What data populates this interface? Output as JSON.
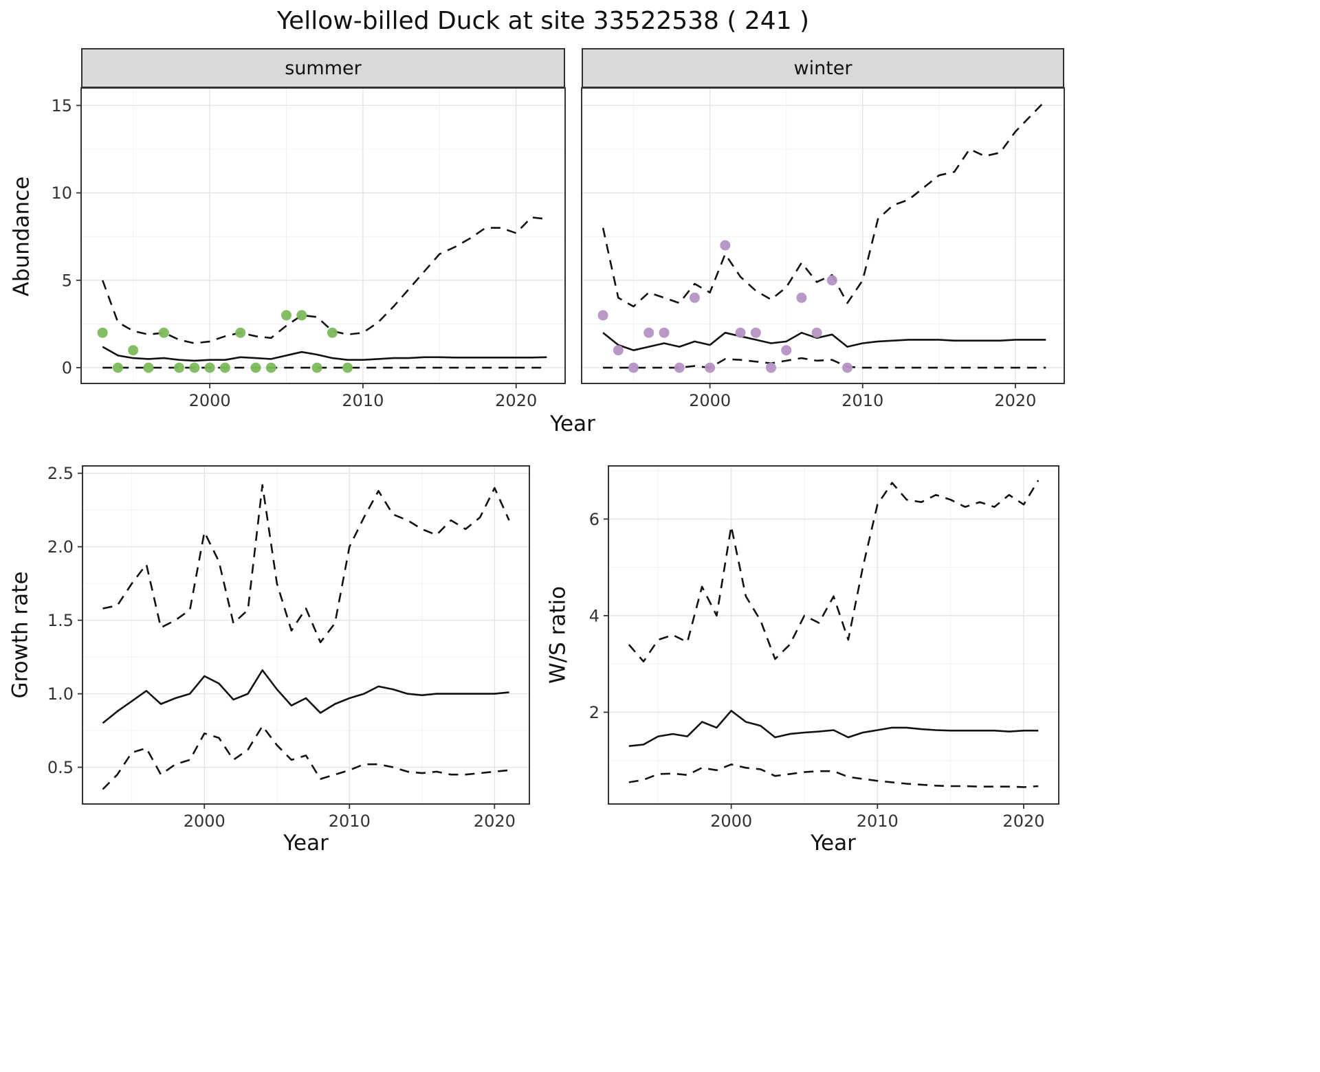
{
  "title": "Yellow-billed Duck at site 33522538 ( 241 )",
  "facets": {
    "summer": "summer",
    "winter": "winter"
  },
  "axis_titles": {
    "x": "Year",
    "abundance": "Abundance",
    "growth": "Growth rate",
    "ws": "W/S ratio"
  },
  "colors": {
    "summer_points": "#7cba5d",
    "winter_points": "#b492c4",
    "line": "#111111",
    "panel_border": "#333333",
    "tick": "#333333",
    "tick_label": "#333333",
    "grid_major": "#e4e4e4",
    "grid_minor": "#f1f1f1",
    "strip_bg": "#d9d9d9"
  },
  "chart_data": [
    {
      "id": "abundance-summer",
      "type": "line",
      "facet_label": "summer",
      "xlabel": "Year",
      "ylabel": "Abundance",
      "xlim": [
        1991.6,
        2023.2
      ],
      "ylim": [
        -0.9,
        16
      ],
      "x_ticks": [
        2000,
        2010,
        2020
      ],
      "x_tick_labels": [
        "2000",
        "2010",
        "2020"
      ],
      "y_ticks": [
        0,
        5,
        10,
        15
      ],
      "y_tick_labels": [
        "0",
        "5",
        "10",
        "15"
      ],
      "x": [
        1993,
        1994,
        1995,
        1996,
        1997,
        1998,
        1999,
        2000,
        2001,
        2002,
        2003,
        2004,
        2005,
        2006,
        2007,
        2008,
        2009,
        2010,
        2011,
        2012,
        2013,
        2014,
        2015,
        2016,
        2017,
        2018,
        2019,
        2020,
        2021,
        2022
      ],
      "series": [
        {
          "name": "median",
          "style": "solid",
          "values": [
            1.2,
            0.7,
            0.55,
            0.5,
            0.55,
            0.45,
            0.4,
            0.45,
            0.45,
            0.6,
            0.55,
            0.5,
            0.7,
            0.9,
            0.75,
            0.55,
            0.45,
            0.45,
            0.5,
            0.55,
            0.55,
            0.6,
            0.6,
            0.58,
            0.58,
            0.58,
            0.58,
            0.58,
            0.58,
            0.6
          ]
        },
        {
          "name": "upper-ci",
          "style": "dashed",
          "values": [
            5.0,
            2.6,
            2.1,
            1.9,
            2.0,
            1.6,
            1.4,
            1.5,
            1.8,
            2.0,
            1.8,
            1.7,
            2.4,
            3.0,
            2.9,
            2.1,
            1.9,
            2.0,
            2.6,
            3.5,
            4.5,
            5.5,
            6.5,
            6.9,
            7.4,
            8.0,
            8.0,
            7.7,
            8.6,
            8.5
          ]
        },
        {
          "name": "lower-ci",
          "style": "dashed",
          "values": [
            0,
            0,
            0,
            0,
            0,
            0,
            0,
            0,
            0,
            0,
            0,
            0,
            0,
            0,
            0,
            0,
            0,
            0,
            0,
            0,
            0,
            0,
            0,
            0,
            0,
            0,
            0,
            0,
            0,
            0
          ]
        }
      ],
      "points": {
        "name": "observed-counts-summer",
        "color": "#7cba5d",
        "x": [
          1993,
          1994,
          1995,
          1996,
          1997,
          1998,
          1999,
          2000,
          2001,
          2002,
          2003,
          2004,
          2005,
          2006,
          2007,
          2008,
          2009
        ],
        "y": [
          2,
          0,
          1,
          0,
          2,
          0,
          0,
          0,
          0,
          2,
          0,
          0,
          3,
          3,
          0,
          2,
          0
        ]
      }
    },
    {
      "id": "abundance-winter",
      "type": "line",
      "facet_label": "winter",
      "xlabel": "Year",
      "ylabel": "Abundance",
      "xlim": [
        1991.6,
        2023.2
      ],
      "ylim": [
        -0.9,
        16
      ],
      "x_ticks": [
        2000,
        2010,
        2020
      ],
      "x_tick_labels": [
        "2000",
        "2010",
        "2020"
      ],
      "y_ticks": [
        0,
        5,
        10,
        15
      ],
      "y_tick_labels": [
        "0",
        "5",
        "10",
        "15"
      ],
      "x": [
        1993,
        1994,
        1995,
        1996,
        1997,
        1998,
        1999,
        2000,
        2001,
        2002,
        2003,
        2004,
        2005,
        2006,
        2007,
        2008,
        2009,
        2010,
        2011,
        2012,
        2013,
        2014,
        2015,
        2016,
        2017,
        2018,
        2019,
        2020,
        2021,
        2022
      ],
      "series": [
        {
          "name": "median",
          "style": "solid",
          "values": [
            2.0,
            1.3,
            1.0,
            1.2,
            1.4,
            1.2,
            1.5,
            1.3,
            2.0,
            1.8,
            1.6,
            1.4,
            1.5,
            2.0,
            1.7,
            1.9,
            1.2,
            1.4,
            1.5,
            1.55,
            1.6,
            1.6,
            1.6,
            1.55,
            1.55,
            1.55,
            1.55,
            1.6,
            1.6,
            1.6
          ]
        },
        {
          "name": "upper-ci",
          "style": "dashed",
          "values": [
            8.0,
            4.0,
            3.5,
            4.3,
            4.0,
            3.7,
            4.8,
            4.3,
            6.5,
            5.2,
            4.4,
            3.9,
            4.6,
            6.0,
            4.9,
            5.3,
            3.7,
            5.0,
            8.5,
            9.3,
            9.6,
            10.3,
            11.0,
            11.2,
            12.5,
            12.1,
            12.3,
            13.5,
            14.4,
            15.3
          ]
        },
        {
          "name": "lower-ci",
          "style": "dashed",
          "values": [
            0,
            0,
            0,
            0,
            0,
            0,
            0.1,
            0,
            0.5,
            0.45,
            0.35,
            0.25,
            0.4,
            0.55,
            0.4,
            0.45,
            0.05,
            0,
            0,
            0,
            0,
            0,
            0,
            0,
            0,
            0,
            0,
            0,
            0,
            0
          ]
        }
      ],
      "points": {
        "name": "observed-counts-winter",
        "color": "#b492c4",
        "x": [
          1993,
          1994,
          1995,
          1996,
          1997,
          1998,
          1999,
          2000,
          2001,
          2002,
          2003,
          2004,
          2005,
          2006,
          2007,
          2008,
          2009
        ],
        "y": [
          3,
          1,
          0,
          2,
          2,
          0,
          4,
          0,
          7,
          2,
          2,
          0,
          1,
          4,
          2,
          5,
          0
        ]
      }
    },
    {
      "id": "growth-rate",
      "type": "line",
      "facet_label": "",
      "xlabel": "Year",
      "ylabel": "Growth rate",
      "xlim": [
        1991.6,
        2022.4
      ],
      "ylim": [
        0.25,
        2.55
      ],
      "x_ticks": [
        2000,
        2010,
        2020
      ],
      "x_tick_labels": [
        "2000",
        "2010",
        "2020"
      ],
      "y_ticks": [
        0.5,
        1.0,
        1.5,
        2.0,
        2.5
      ],
      "y_tick_labels": [
        "0.5",
        "1.0",
        "1.5",
        "2.0",
        "2.5"
      ],
      "x": [
        1993,
        1994,
        1995,
        1996,
        1997,
        1998,
        1999,
        2000,
        2001,
        2002,
        2003,
        2004,
        2005,
        2006,
        2007,
        2008,
        2009,
        2010,
        2011,
        2012,
        2013,
        2014,
        2015,
        2016,
        2017,
        2018,
        2019,
        2020,
        2021
      ],
      "series": [
        {
          "name": "median",
          "style": "solid",
          "values": [
            0.8,
            0.88,
            0.95,
            1.02,
            0.93,
            0.97,
            1.0,
            1.12,
            1.07,
            0.96,
            1.0,
            1.16,
            1.03,
            0.92,
            0.97,
            0.87,
            0.93,
            0.97,
            1.0,
            1.05,
            1.03,
            1.0,
            0.99,
            1.0,
            1.0,
            1.0,
            1.0,
            1.0,
            1.01
          ]
        },
        {
          "name": "upper-ci",
          "style": "dashed",
          "values": [
            1.58,
            1.6,
            1.75,
            1.88,
            1.45,
            1.5,
            1.57,
            2.1,
            1.9,
            1.48,
            1.57,
            2.42,
            1.75,
            1.43,
            1.58,
            1.35,
            1.48,
            2.0,
            2.2,
            2.38,
            2.22,
            2.18,
            2.12,
            2.08,
            2.18,
            2.12,
            2.2,
            2.4,
            2.18
          ]
        },
        {
          "name": "lower-ci",
          "style": "dashed",
          "values": [
            0.35,
            0.45,
            0.6,
            0.63,
            0.45,
            0.52,
            0.55,
            0.73,
            0.7,
            0.55,
            0.62,
            0.78,
            0.65,
            0.55,
            0.58,
            0.42,
            0.45,
            0.48,
            0.52,
            0.52,
            0.5,
            0.47,
            0.46,
            0.47,
            0.45,
            0.45,
            0.46,
            0.47,
            0.48
          ]
        }
      ]
    },
    {
      "id": "ws-ratio",
      "type": "line",
      "facet_label": "",
      "xlabel": "Year",
      "ylabel": "W/S ratio",
      "xlim": [
        1991.6,
        2022.4
      ],
      "ylim": [
        0.1,
        7.1
      ],
      "x_ticks": [
        2000,
        2010,
        2020
      ],
      "x_tick_labels": [
        "2000",
        "2010",
        "2020"
      ],
      "y_ticks": [
        2,
        4,
        6
      ],
      "y_tick_labels": [
        "2",
        "4",
        "6"
      ],
      "x": [
        1993,
        1994,
        1995,
        1996,
        1997,
        1998,
        1999,
        2000,
        2001,
        2002,
        2003,
        2004,
        2005,
        2006,
        2007,
        2008,
        2009,
        2010,
        2011,
        2012,
        2013,
        2014,
        2015,
        2016,
        2017,
        2018,
        2019,
        2020,
        2021
      ],
      "series": [
        {
          "name": "median",
          "style": "solid",
          "values": [
            1.3,
            1.33,
            1.5,
            1.55,
            1.5,
            1.8,
            1.68,
            2.03,
            1.8,
            1.72,
            1.48,
            1.55,
            1.58,
            1.6,
            1.63,
            1.48,
            1.58,
            1.63,
            1.68,
            1.68,
            1.65,
            1.63,
            1.62,
            1.62,
            1.62,
            1.62,
            1.6,
            1.62,
            1.62
          ]
        },
        {
          "name": "upper-ci",
          "style": "dashed",
          "values": [
            3.4,
            3.05,
            3.5,
            3.6,
            3.45,
            4.6,
            4.0,
            5.85,
            4.4,
            3.9,
            3.1,
            3.4,
            4.0,
            3.85,
            4.4,
            3.5,
            5.0,
            6.3,
            6.75,
            6.4,
            6.35,
            6.5,
            6.4,
            6.25,
            6.35,
            6.25,
            6.5,
            6.3,
            6.8
          ]
        },
        {
          "name": "lower-ci",
          "style": "dashed",
          "values": [
            0.55,
            0.6,
            0.72,
            0.73,
            0.7,
            0.85,
            0.8,
            0.92,
            0.85,
            0.82,
            0.68,
            0.72,
            0.76,
            0.78,
            0.78,
            0.66,
            0.62,
            0.58,
            0.55,
            0.52,
            0.5,
            0.48,
            0.47,
            0.47,
            0.46,
            0.46,
            0.46,
            0.45,
            0.47
          ]
        }
      ]
    }
  ]
}
